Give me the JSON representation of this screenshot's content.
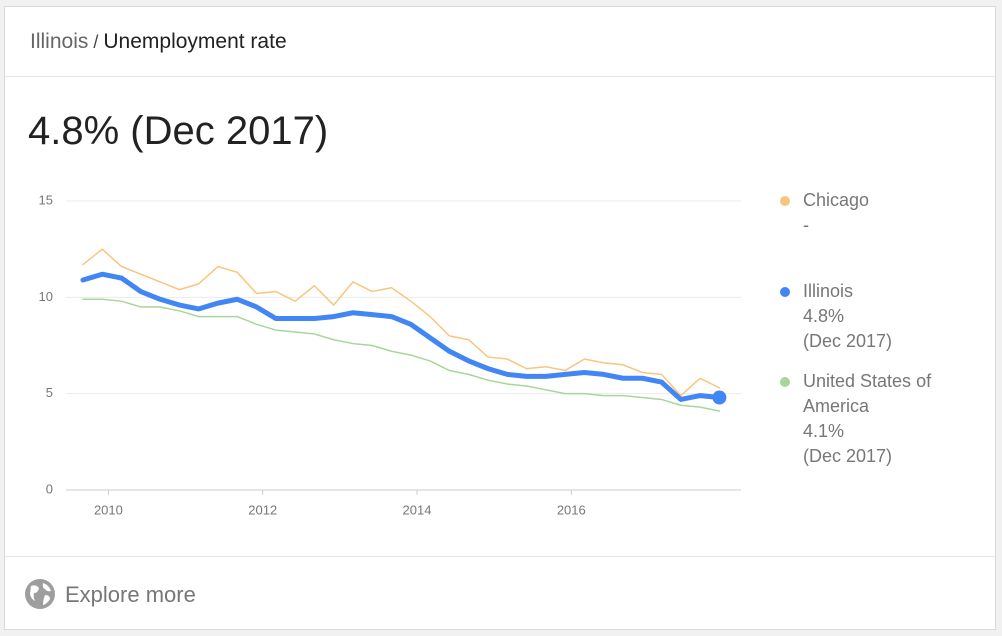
{
  "header": {
    "parent": "Illinois",
    "separator": "/",
    "title": "Unemployment rate"
  },
  "headline": "4.8% (Dec 2017)",
  "footer": {
    "link": "Explore more"
  },
  "chart_data": {
    "type": "line",
    "x": [
      2009.67,
      2009.92,
      2010.17,
      2010.42,
      2010.67,
      2010.92,
      2011.17,
      2011.42,
      2011.67,
      2011.92,
      2012.17,
      2012.42,
      2012.67,
      2012.92,
      2013.17,
      2013.42,
      2013.67,
      2013.92,
      2014.17,
      2014.42,
      2014.67,
      2014.92,
      2015.17,
      2015.42,
      2015.67,
      2015.92,
      2016.17,
      2016.42,
      2016.67,
      2016.92,
      2017.17,
      2017.42,
      2017.67,
      2017.92
    ],
    "xlim": [
      2009.45,
      2018.2
    ],
    "xticks": [
      2010,
      2012,
      2014,
      2016
    ],
    "ylim": [
      0,
      15
    ],
    "yticks": [
      0,
      5,
      10,
      15
    ],
    "grid": true,
    "series": [
      {
        "name": "Chicago",
        "color": "#f9c57c",
        "width": 1.5,
        "latest": "-",
        "values": [
          11.7,
          12.5,
          11.6,
          11.2,
          10.8,
          10.4,
          10.7,
          11.6,
          11.3,
          10.2,
          10.3,
          9.8,
          10.6,
          9.6,
          10.8,
          10.3,
          10.5,
          9.8,
          9.0,
          8.0,
          7.8,
          6.9,
          6.8,
          6.3,
          6.4,
          6.2,
          6.8,
          6.6,
          6.5,
          6.1,
          6.0,
          4.9,
          5.8,
          5.3
        ]
      },
      {
        "name": "Illinois",
        "color": "#4285f4",
        "width": 5,
        "latest": "4.8%",
        "latest_date": "(Dec 2017)",
        "highlight": true,
        "values": [
          10.9,
          11.2,
          11.0,
          10.3,
          9.9,
          9.6,
          9.4,
          9.7,
          9.9,
          9.5,
          8.9,
          8.9,
          8.9,
          9.0,
          9.2,
          9.1,
          9.0,
          8.6,
          7.9,
          7.2,
          6.7,
          6.3,
          6.0,
          5.9,
          5.9,
          6.0,
          6.1,
          6.0,
          5.8,
          5.8,
          5.6,
          4.7,
          4.9,
          4.8
        ]
      },
      {
        "name": "United States of America",
        "color": "#a8d69a",
        "width": 1.5,
        "latest": "4.1%",
        "latest_date": "(Dec 2017)",
        "values": [
          9.9,
          9.9,
          9.8,
          9.5,
          9.5,
          9.3,
          9.0,
          9.0,
          9.0,
          8.6,
          8.3,
          8.2,
          8.1,
          7.8,
          7.6,
          7.5,
          7.2,
          7.0,
          6.7,
          6.2,
          6.0,
          5.7,
          5.5,
          5.4,
          5.2,
          5.0,
          5.0,
          4.9,
          4.9,
          4.8,
          4.7,
          4.4,
          4.3,
          4.1
        ]
      }
    ]
  }
}
